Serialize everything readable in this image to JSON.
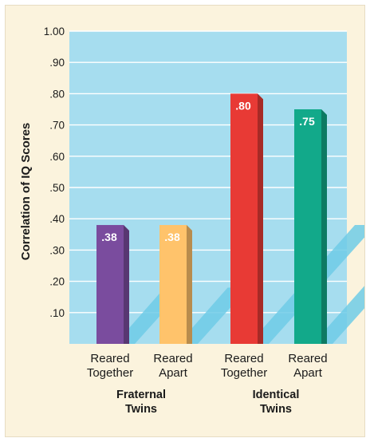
{
  "chart_data": {
    "type": "bar",
    "ylabel": "Correlation of IQ Scores",
    "xlabel": "",
    "ylim": [
      0,
      1.0
    ],
    "yticks": [
      {
        "value": 0.1,
        "label": ".10"
      },
      {
        "value": 0.2,
        "label": ".20"
      },
      {
        "value": 0.3,
        "label": ".30"
      },
      {
        "value": 0.4,
        "label": ".40"
      },
      {
        "value": 0.5,
        "label": ".50"
      },
      {
        "value": 0.6,
        "label": ".60"
      },
      {
        "value": 0.7,
        "label": ".70"
      },
      {
        "value": 0.8,
        "label": ".80"
      },
      {
        "value": 0.9,
        "label": ".90"
      },
      {
        "value": 1.0,
        "label": "1.00"
      }
    ],
    "grid": true,
    "groups": [
      {
        "label": [
          "Fraternal",
          "Twins"
        ]
      },
      {
        "label": [
          "Identical",
          "Twins"
        ]
      }
    ],
    "bars": [
      {
        "category": [
          "Reared",
          "Together"
        ],
        "group": 0,
        "value": 0.38,
        "value_label": ".38",
        "color": "#7a4c9e"
      },
      {
        "category": [
          "Reared",
          "Apart"
        ],
        "group": 0,
        "value": 0.38,
        "value_label": ".38",
        "color": "#ffc36b"
      },
      {
        "category": [
          "Reared",
          "Together"
        ],
        "group": 1,
        "value": 0.8,
        "value_label": ".80",
        "color": "#e83a35"
      },
      {
        "category": [
          "Reared",
          "Apart"
        ],
        "group": 1,
        "value": 0.75,
        "value_label": ".75",
        "color": "#12a98a"
      }
    ],
    "colors": {
      "plot_background": "#a6ddef",
      "gridline": "#ffffff",
      "figure_background": "#fbf3dd",
      "shadow": "#6fcbe6"
    }
  }
}
